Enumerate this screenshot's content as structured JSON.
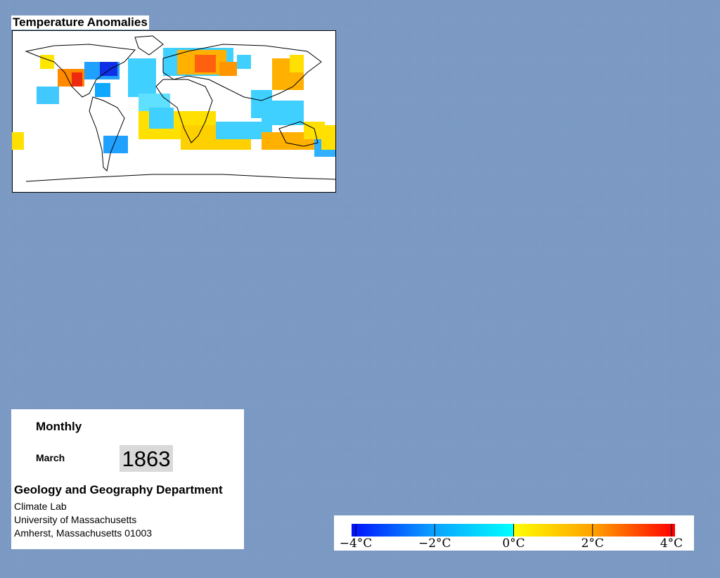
{
  "map_panel": {
    "title": "Temperature Anomalies"
  },
  "info_panel": {
    "period": "Monthly",
    "month": "March",
    "year": "1863",
    "department": "Geology and Geography Department",
    "address_lines": [
      "Climate Lab",
      "University of Massachusetts",
      "Amherst, Massachusetts 01003"
    ]
  },
  "colorbar": {
    "lim": [
      -4,
      4
    ],
    "ticks": [
      {
        "value": -4,
        "label": "−4°C"
      },
      {
        "value": -2,
        "label": "−2°C"
      },
      {
        "value": 0,
        "label": "0°C"
      },
      {
        "value": 2,
        "label": "2°C"
      },
      {
        "value": 4,
        "label": "4°C"
      }
    ]
  }
}
